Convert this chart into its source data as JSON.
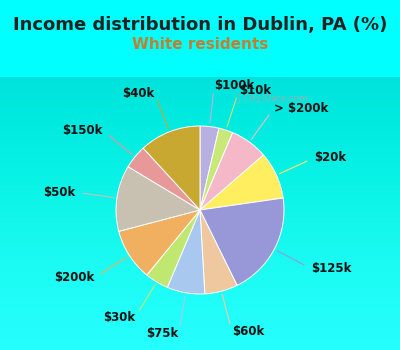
{
  "title": "Income distribution in Dublin, PA (%)",
  "subtitle": "White residents",
  "outer_bg_color": "#00FFFF",
  "chart_bg_color": "#d8ede0",
  "watermark": "City-Data.com",
  "slices": [
    {
      "label": "$100k",
      "value": 4,
      "color": "#b8b0e0"
    },
    {
      "label": "$10k",
      "value": 3,
      "color": "#c8e878"
    },
    {
      "label": "> $200k",
      "value": 8,
      "color": "#f4b8c8"
    },
    {
      "label": "$20k",
      "value": 10,
      "color": "#ffee60"
    },
    {
      "label": "$125k",
      "value": 22,
      "color": "#9898d8"
    },
    {
      "label": "$60k",
      "value": 7,
      "color": "#f0c8a0"
    },
    {
      "label": "$75k",
      "value": 8,
      "color": "#a8c8f0"
    },
    {
      "label": "$30k",
      "value": 5,
      "color": "#c0e870"
    },
    {
      "label": "$200k",
      "value": 11,
      "color": "#f0b060"
    },
    {
      "label": "$50k",
      "value": 14,
      "color": "#c8c0b0"
    },
    {
      "label": "$150k",
      "value": 5,
      "color": "#e89898"
    },
    {
      "label": "$40k",
      "value": 13,
      "color": "#c8a830"
    }
  ],
  "title_fontsize": 13,
  "subtitle_fontsize": 11,
  "label_fontsize": 8.5,
  "title_color": "#222222",
  "subtitle_color": "#c08030"
}
